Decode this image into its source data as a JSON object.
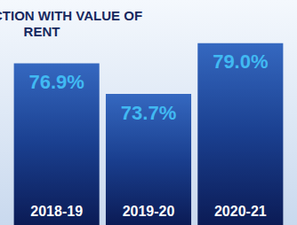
{
  "chart_data": {
    "type": "bar",
    "title": "SATISFACTION WITH VALUE OF RENT",
    "categories": [
      "2018-19",
      "2019-20",
      "2020-21"
    ],
    "values": [
      76.9,
      73.7,
      79.0
    ],
    "value_labels": [
      "76.9%",
      "73.7%",
      "79.0%"
    ],
    "color": "#1a3f8f",
    "ylim": [
      60,
      80
    ],
    "data_labels": true,
    "tick_labels": "x",
    "grid": false
  }
}
